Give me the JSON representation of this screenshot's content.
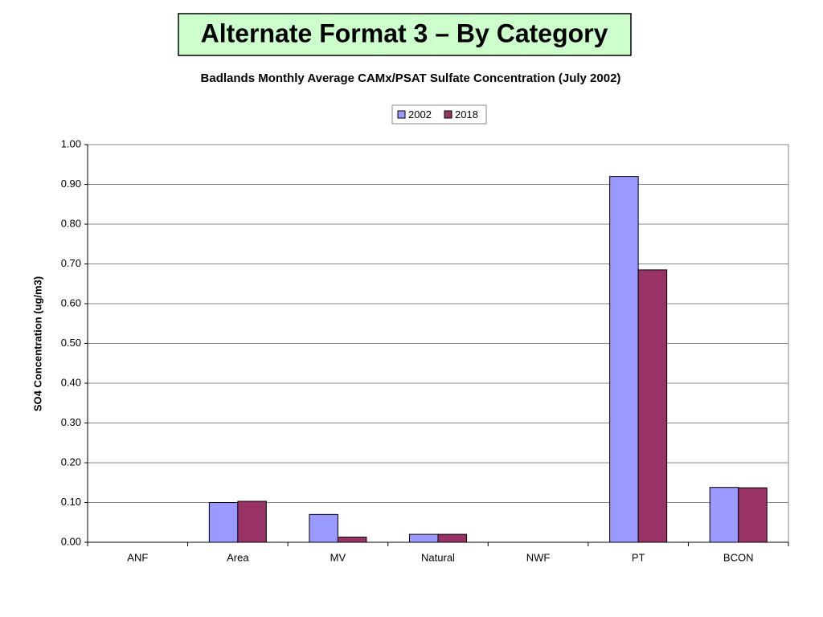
{
  "slide_title": "Alternate Format 3 – By Category",
  "chart_data": {
    "type": "bar",
    "title": "Badlands Monthly Average CAMx/PSAT Sulfate Concentration (July 2002)",
    "ylabel": "SO4 Concentration (ug/m3)",
    "categories": [
      "ANF",
      "Area",
      "MV",
      "Natural",
      "NWF",
      "PT",
      "BCON"
    ],
    "series": [
      {
        "name": "2002",
        "color": "#9999ff",
        "values": [
          0,
          0.1,
          0.07,
          0.02,
          0,
          0.92,
          0.138
        ]
      },
      {
        "name": "2018",
        "color": "#993366",
        "values": [
          0,
          0.103,
          0.013,
          0.02,
          0,
          0.685,
          0.137
        ]
      }
    ],
    "ylim": [
      0,
      1
    ],
    "yticks": [
      {
        "value": 0,
        "label": "0.00"
      },
      {
        "value": 0.1,
        "label": "0.10"
      },
      {
        "value": 0.2,
        "label": "0.20"
      },
      {
        "value": 0.3,
        "label": "0.30"
      },
      {
        "value": 0.4,
        "label": "0.40"
      },
      {
        "value": 0.5,
        "label": "0.50"
      },
      {
        "value": 0.6,
        "label": "0.60"
      },
      {
        "value": 0.7,
        "label": "0.70"
      },
      {
        "value": 0.8,
        "label": "0.80"
      },
      {
        "value": 0.9,
        "label": "0.90"
      },
      {
        "value": 1,
        "label": "1.00"
      }
    ],
    "grid": true,
    "legend": "top"
  }
}
